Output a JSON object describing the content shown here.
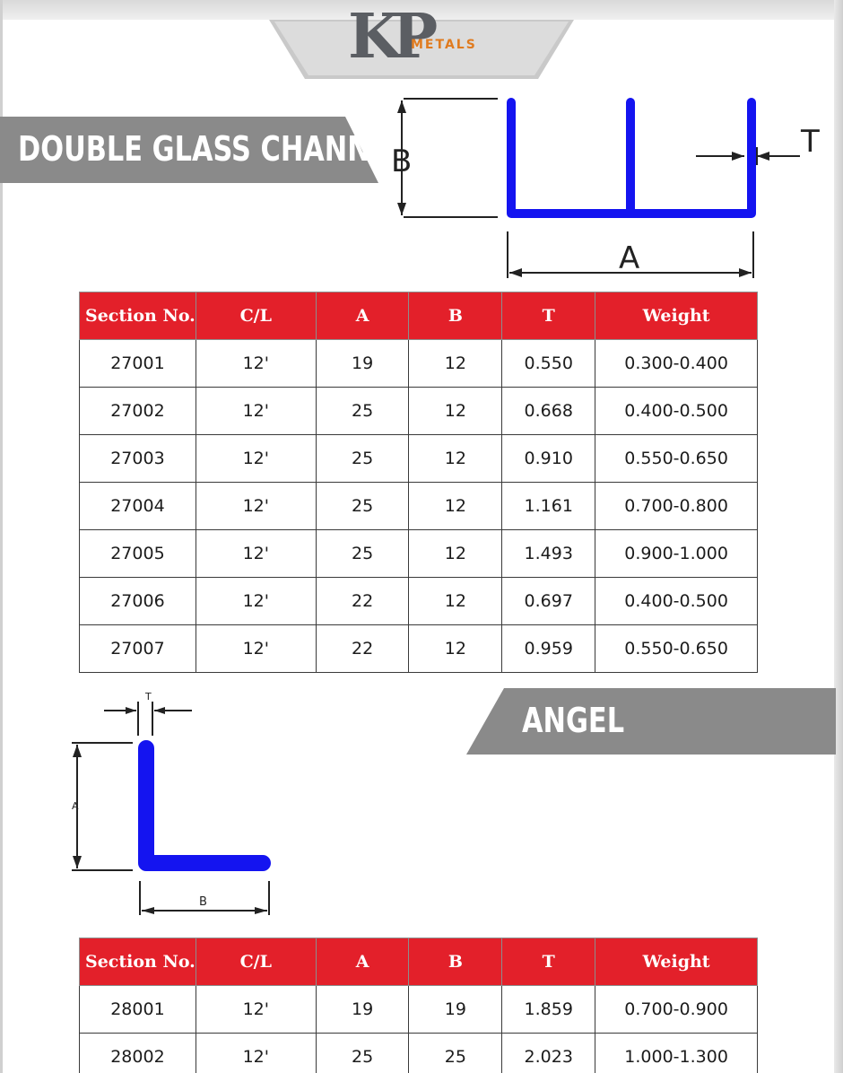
{
  "logo": {
    "mark": "KP",
    "name": "METALS"
  },
  "sections": [
    {
      "title": "DOUBLE GLASS CHANNEL",
      "dims": {
        "a": "A",
        "b": "B",
        "t": "T"
      },
      "columns": [
        "Section No.",
        "C/L",
        "A",
        "B",
        "T",
        "Weight"
      ],
      "rows": [
        [
          "27001",
          "12'",
          "19",
          "12",
          "0.550",
          "0.300-0.400"
        ],
        [
          "27002",
          "12'",
          "25",
          "12",
          "0.668",
          "0.400-0.500"
        ],
        [
          "27003",
          "12'",
          "25",
          "12",
          "0.910",
          "0.550-0.650"
        ],
        [
          "27004",
          "12'",
          "25",
          "12",
          "1.161",
          "0.700-0.800"
        ],
        [
          "27005",
          "12'",
          "25",
          "12",
          "1.493",
          "0.900-1.000"
        ],
        [
          "27006",
          "12'",
          "22",
          "12",
          "0.697",
          "0.400-0.500"
        ],
        [
          "27007",
          "12'",
          "22",
          "12",
          "0.959",
          "0.550-0.650"
        ]
      ]
    },
    {
      "title": "ANGEL",
      "dims": {
        "a": "A",
        "b": "B",
        "t": "T"
      },
      "columns": [
        "Section No.",
        "C/L",
        "A",
        "B",
        "T",
        "Weight"
      ],
      "rows": [
        [
          "28001",
          "12'",
          "19",
          "19",
          "1.859",
          "0.700-0.900"
        ],
        [
          "28002",
          "12'",
          "25",
          "25",
          "2.023",
          "1.000-1.300"
        ]
      ]
    }
  ],
  "colors": {
    "header_red": "#e3202a",
    "profile_blue": "#1414f0",
    "banner_gray": "#8a8a8a"
  }
}
